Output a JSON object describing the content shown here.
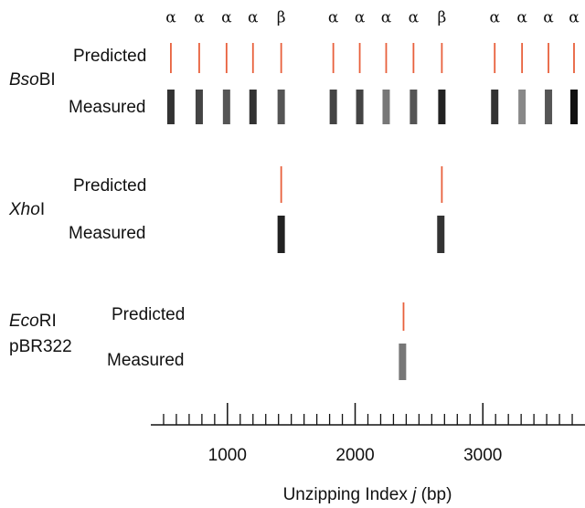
{
  "chart_data": {
    "type": "strip",
    "xlabel_pre": "Unzipping Index ",
    "xlabel_var": "j",
    "xlabel_post": " (bp)",
    "xlim": [
      400,
      3800
    ],
    "xticks": [
      1000,
      2000,
      3000
    ],
    "xminorticks": [
      500,
      600,
      700,
      800,
      900,
      1100,
      1200,
      1300,
      1400,
      1500,
      1600,
      1700,
      1800,
      1900,
      2100,
      2200,
      2300,
      2400,
      2500,
      2600,
      2700,
      2800,
      2900,
      3100,
      3200,
      3300,
      3400,
      3500,
      3600,
      3700
    ],
    "panels": [
      {
        "name_italic": "Bso",
        "name_rest": "BI",
        "predicted": {
          "label": "Predicted",
          "color": "#e8603c",
          "values": [
            557,
            779,
            993,
            1200,
            1421,
            1829,
            2036,
            2243,
            2457,
            2679,
            3093,
            3307,
            3514,
            3714
          ],
          "site_labels": [
            "α",
            "α",
            "α",
            "α",
            "β",
            "α",
            "α",
            "α",
            "α",
            "β",
            "α",
            "α",
            "α",
            "α"
          ]
        },
        "measured": {
          "label": "Measured",
          "values": [
            557,
            779,
            993,
            1200,
            1421,
            1829,
            2036,
            2243,
            2457,
            2679,
            3093,
            3307,
            3514,
            3714
          ],
          "colors": [
            "#333333",
            "#444444",
            "#555555",
            "#333333",
            "#555555",
            "#444444",
            "#444444",
            "#777777",
            "#555555",
            "#222222",
            "#333333",
            "#888888",
            "#555555",
            "#111111"
          ]
        }
      },
      {
        "name_italic": "Xho",
        "name_rest": "I",
        "predicted": {
          "label": "Predicted",
          "color": "#e8603c",
          "values": [
            1421,
            2679
          ]
        },
        "measured": {
          "label": "Measured",
          "values": [
            1421,
            2671
          ],
          "colors": [
            "#222222",
            "#333333"
          ]
        }
      },
      {
        "name_italic": "Eco",
        "name_rest": "RI",
        "sample": "pBR322",
        "predicted": {
          "label": "Predicted",
          "color": "#e8603c",
          "values": [
            2379
          ]
        },
        "measured": {
          "label": "Measured",
          "values": [
            2371
          ],
          "colors": [
            "#777777"
          ]
        }
      }
    ]
  }
}
